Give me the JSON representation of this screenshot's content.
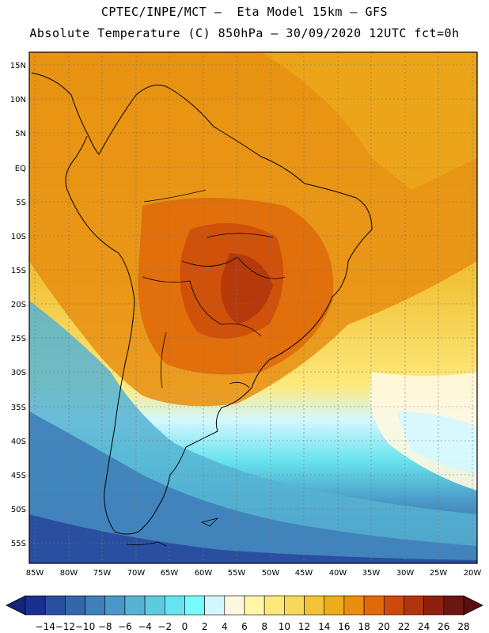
{
  "title_line1": "CPTEC/INPE/MCT —  Eta Model 15km — GFS",
  "title_line2": "Absolute Temperature (C) 850hPa — 30/09/2020 12UTC fct=0h",
  "lat_labels": [
    "15N",
    "10N",
    "5N",
    "EQ",
    "5S",
    "10S",
    "15S",
    "20S",
    "25S",
    "30S",
    "35S",
    "40S",
    "45S",
    "50S",
    "55S"
  ],
  "lon_labels": [
    "85W",
    "80W",
    "75W",
    "70W",
    "65W",
    "60W",
    "55W",
    "50W",
    "45W",
    "40W",
    "35W",
    "30W",
    "25W",
    "20W"
  ],
  "colorbar": {
    "ticks": [
      "-14",
      "-12",
      "-10",
      "-8",
      "-6",
      "-4",
      "-2",
      "0",
      "2",
      "4",
      "6",
      "8",
      "10",
      "12",
      "14",
      "16",
      "18",
      "20",
      "22",
      "24",
      "26",
      "28"
    ],
    "colors": [
      "#1a2f8f",
      "#2a4fa0",
      "#3566ad",
      "#3f7fba",
      "#4a98c6",
      "#56b3d2",
      "#5ccbe0",
      "#66e3ee",
      "#78fbff",
      "#d4f7ff",
      "#fff8e0",
      "#fff6a8",
      "#fde97a",
      "#f8d85a",
      "#f2c33a",
      "#edac1c",
      "#e88e10",
      "#e06a0a",
      "#cb4c0a",
      "#b0350c",
      "#8f2010",
      "#6d1512"
    ],
    "left_arrow_color": "#16237a",
    "right_arrow_color": "#5a0e10"
  }
}
